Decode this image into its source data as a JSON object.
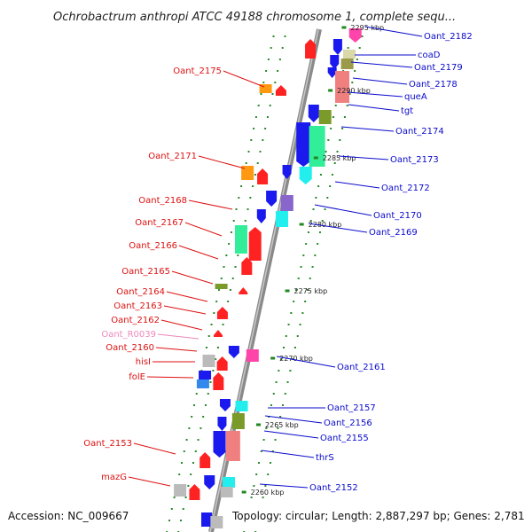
{
  "title": "Ochrobactrum anthropi ATCC 49188 chromosome 1, complete sequ...",
  "footer": {
    "accession": "Accession: NC_009667",
    "topology": "Topology: circular; Length: 2,887,297 bp; Genes: 2,781"
  },
  "colors": {
    "forward_label": "#0a0acc",
    "reverse_label": "#dd1111",
    "rna_label": "#ee88bb",
    "backbone": "#8c8c8c",
    "tick_mark": "#228822"
  },
  "scale_ticks": [
    "2295 kbp",
    "2290 kbp",
    "2285 kbp",
    "2280 kbp",
    "2275 kbp",
    "2270 kbp",
    "2265 kbp",
    "2260 kbp"
  ],
  "genes_right": [
    "Oant_2182",
    "coaD",
    "Oant_2179",
    "Oant_2178",
    "queA",
    "tgt",
    "Oant_2174",
    "Oant_2173",
    "Oant_2172",
    "Oant_2170",
    "Oant_2169",
    "Oant_2161",
    "Oant_2157",
    "Oant_2156",
    "Oant_2155",
    "thrS",
    "Oant_2152"
  ],
  "genes_left": [
    "Oant_2175",
    "Oant_2171",
    "Oant_2168",
    "Oant_2167",
    "Oant_2166",
    "Oant_2165",
    "Oant_2164",
    "Oant_2163",
    "Oant_2162",
    "Oant_R0039",
    "Oant_2160",
    "hisI",
    "folE",
    "Oant_2153",
    "mazG"
  ]
}
